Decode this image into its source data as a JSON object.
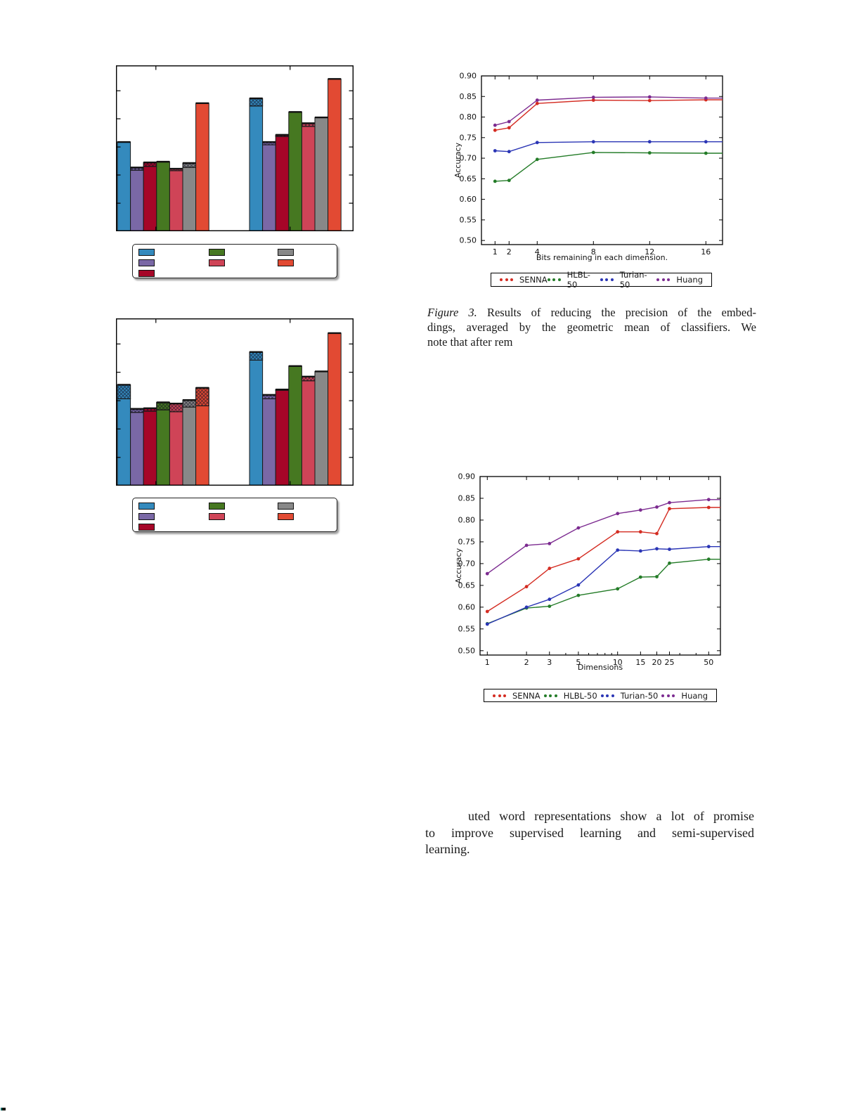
{
  "texts": {
    "caption_figure3": {
      "label": "Figure 3.",
      "line1_rest": "Results of reducing the precision of the embed-",
      "line2": "dings, averaged by the geometric mean of classifiers.  We",
      "line3": "note that after rem"
    },
    "paragraph": {
      "line1": "uted word representations show a lot of promise",
      "line2": "to improve supervised learning and semi-supervised",
      "line3": "learning."
    }
  },
  "chart_data": [
    {
      "id": "bar-top",
      "type": "bar",
      "title": "",
      "xlabel": "",
      "ylabel": "",
      "note": "grouped bar chart, two groups of seven bars, unlabeled axes, cross-hatched caps on some bars, legend of seven unlabeled color swatches",
      "palette": [
        "#348ABD",
        "#7A68A6",
        "#A60628",
        "#467821",
        "#CF4457",
        "#888888",
        "#E24A33"
      ],
      "legend_labels": [
        "",
        "",
        "",
        "",
        "",
        "",
        ""
      ],
      "groups": [
        {
          "bars_solid_frac": [
            0.538,
            0.368,
            0.391,
            0.419,
            0.365,
            0.385,
            0.772
          ],
          "bars_total_frac": [
            0.538,
            0.384,
            0.415,
            0.419,
            0.377,
            0.411,
            0.772
          ]
        },
        {
          "bars_solid_frac": [
            0.755,
            0.521,
            0.571,
            0.719,
            0.632,
            0.686,
            0.918
          ],
          "bars_total_frac": [
            0.801,
            0.538,
            0.581,
            0.719,
            0.651,
            0.686,
            0.918
          ]
        }
      ]
    },
    {
      "id": "bar-bottom",
      "type": "bar",
      "title": "",
      "xlabel": "",
      "ylabel": "",
      "note": "grouped bar chart, two groups of seven bars, unlabeled axes, larger cross-hatched caps, legend of seven unlabeled color swatches",
      "palette": [
        "#348ABD",
        "#7A68A6",
        "#A60628",
        "#467821",
        "#CF4457",
        "#888888",
        "#E24A33"
      ],
      "legend_labels": [
        "",
        "",
        "",
        "",
        "",
        "",
        ""
      ],
      "groups": [
        {
          "bars_solid_frac": [
            0.519,
            0.438,
            0.445,
            0.453,
            0.442,
            0.47,
            0.477
          ],
          "bars_total_frac": [
            0.603,
            0.459,
            0.463,
            0.498,
            0.491,
            0.512,
            0.585
          ]
        },
        {
          "bars_solid_frac": [
            0.75,
            0.519,
            0.57,
            0.715,
            0.627,
            0.683,
            0.912
          ],
          "bars_total_frac": [
            0.799,
            0.543,
            0.575,
            0.715,
            0.652,
            0.683,
            0.912
          ]
        }
      ]
    },
    {
      "id": "line-bits",
      "type": "line",
      "xscale": "linear",
      "xlabel": "Bits remaining in each dimension.",
      "ylabel": "Accuracy",
      "ylim": [
        0.49,
        0.9
      ],
      "yticklabels": [
        "0.50",
        "0.55",
        "0.60",
        "0.65",
        "0.70",
        "0.75",
        "0.80",
        "0.85",
        "0.90"
      ],
      "x": [
        1,
        2,
        4,
        8,
        12,
        16
      ],
      "xticks": [
        1,
        2,
        4,
        8,
        12,
        16
      ],
      "xticklabels": [
        "1",
        "2",
        "4",
        "8",
        "12",
        "16"
      ],
      "series": [
        {
          "name": "SENNA",
          "color": "#D42C22",
          "values": [
            0.768,
            0.774,
            0.833,
            0.841,
            0.84,
            0.842
          ]
        },
        {
          "name": "HLBL-50",
          "color": "#247C28",
          "values": [
            0.644,
            0.646,
            0.697,
            0.714,
            0.713,
            0.712
          ]
        },
        {
          "name": "Turian-50",
          "color": "#2A35B5",
          "values": [
            0.718,
            0.716,
            0.738,
            0.74,
            0.74,
            0.74
          ]
        },
        {
          "name": "Huang",
          "color": "#7C2B90",
          "values": [
            0.78,
            0.789,
            0.841,
            0.848,
            0.849,
            0.846
          ]
        }
      ],
      "legend_position": "below"
    },
    {
      "id": "line-dims",
      "type": "line",
      "xscale": "log",
      "xlabel": "Dimensions",
      "ylabel": "Accuracy",
      "ylim": [
        0.49,
        0.9
      ],
      "yticklabels": [
        "0.50",
        "0.55",
        "0.60",
        "0.65",
        "0.70",
        "0.75",
        "0.80",
        "0.85",
        "0.90"
      ],
      "x": [
        1,
        2,
        3,
        5,
        10,
        15,
        20,
        25,
        50
      ],
      "xticks": [
        1,
        2,
        3,
        5,
        10,
        15,
        20,
        25,
        50
      ],
      "xticklabels": [
        "1",
        "2",
        "3",
        "5",
        "10",
        "15",
        "20",
        "25",
        "50"
      ],
      "xminorticks": [
        4,
        6,
        7,
        8,
        9,
        30,
        40
      ],
      "series": [
        {
          "name": "SENNA",
          "color": "#D42C22",
          "values": [
            0.59,
            0.647,
            0.689,
            0.711,
            0.773,
            0.773,
            0.769,
            0.826,
            0.829
          ]
        },
        {
          "name": "HLBL-50",
          "color": "#247C28",
          "values": [
            0.562,
            0.598,
            0.602,
            0.627,
            0.642,
            0.669,
            0.67,
            0.701,
            0.71
          ]
        },
        {
          "name": "Turian-50",
          "color": "#2A35B5",
          "values": [
            0.561,
            0.6,
            0.618,
            0.651,
            0.731,
            0.729,
            0.734,
            0.733,
            0.739
          ]
        },
        {
          "name": "Huang",
          "color": "#7C2B90",
          "values": [
            0.677,
            0.742,
            0.746,
            0.782,
            0.815,
            0.823,
            0.83,
            0.84,
            0.847
          ]
        }
      ],
      "legend_position": "below"
    }
  ]
}
